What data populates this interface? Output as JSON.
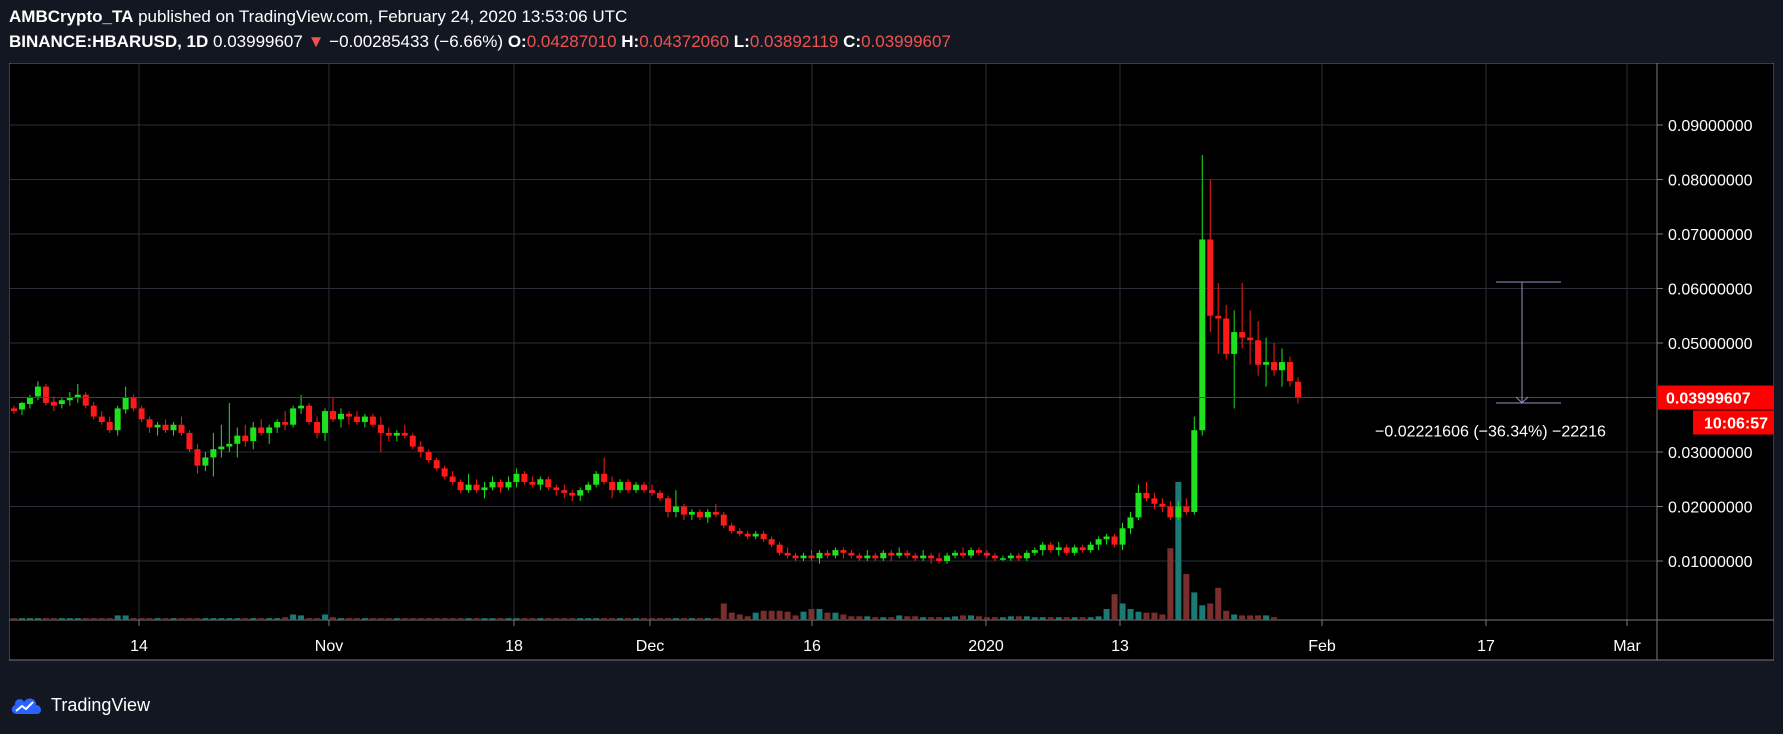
{
  "header": {
    "author": "AMBCrypto_TA",
    "published_text": "published on TradingView.com, February 24, 2020 13:53:06 UTC",
    "symbol": "BINANCE:HBARUSD, 1D",
    "last_price": "0.03999607",
    "change_arrow": "▼",
    "change": "−0.00285433 (−6.66%)",
    "open_label": "O:",
    "open": "0.04287010",
    "high_label": "H:",
    "high": "0.04372060",
    "low_label": "L:",
    "low": "0.03892119",
    "close_label": "C:",
    "close": "0.03999607"
  },
  "footer": {
    "brand": "TradingView"
  },
  "colors": {
    "up": "#1fe21f",
    "down": "#ff1a1a",
    "background": "#000000",
    "price_label": "#ff0000",
    "grid": "#2a2e39",
    "measure": "#9c8ec9"
  },
  "chart_data": {
    "type": "candlestick",
    "y_axis": {
      "ticks": [
        "0.09000000",
        "0.08000000",
        "0.07000000",
        "0.06000000",
        "0.05000000",
        "0.03000000",
        "0.02000000",
        "0.01000000"
      ],
      "range": [
        0.0,
        0.093
      ]
    },
    "x_axis": {
      "ticks": [
        "14",
        "Nov",
        "18",
        "Dec",
        "16",
        "2020",
        "13",
        "Feb",
        "17",
        "Mar"
      ]
    },
    "current_price_label": "0.03999607",
    "current_price": 0.03999607,
    "countdown_label": "10:06:57",
    "measure": {
      "label": "−0.02221606 (−36.34%) −22216",
      "from_price": 0.0612,
      "to_price": 0.039
    },
    "candles": [
      [
        0.038,
        0.0385,
        0.037,
        0.0375
      ],
      [
        0.0378,
        0.0392,
        0.0368,
        0.039
      ],
      [
        0.0388,
        0.0405,
        0.038,
        0.04
      ],
      [
        0.0402,
        0.043,
        0.0395,
        0.042
      ],
      [
        0.042,
        0.0425,
        0.0385,
        0.039
      ],
      [
        0.0392,
        0.0402,
        0.0375,
        0.0385
      ],
      [
        0.0388,
        0.04,
        0.038,
        0.0395
      ],
      [
        0.0395,
        0.041,
        0.0385,
        0.04
      ],
      [
        0.04,
        0.0425,
        0.039,
        0.0405
      ],
      [
        0.0405,
        0.041,
        0.038,
        0.0385
      ],
      [
        0.0385,
        0.0392,
        0.036,
        0.0365
      ],
      [
        0.0365,
        0.0375,
        0.035,
        0.0355
      ],
      [
        0.0355,
        0.0365,
        0.0335,
        0.034
      ],
      [
        0.034,
        0.0385,
        0.033,
        0.038
      ],
      [
        0.0378,
        0.042,
        0.037,
        0.04
      ],
      [
        0.04,
        0.0405,
        0.0375,
        0.038
      ],
      [
        0.038,
        0.0385,
        0.0355,
        0.036
      ],
      [
        0.036,
        0.0365,
        0.0335,
        0.0345
      ],
      [
        0.0345,
        0.0355,
        0.033,
        0.035
      ],
      [
        0.035,
        0.036,
        0.0335,
        0.034
      ],
      [
        0.034,
        0.0355,
        0.033,
        0.035
      ],
      [
        0.035,
        0.0365,
        0.033,
        0.0335
      ],
      [
        0.0335,
        0.034,
        0.03,
        0.0305
      ],
      [
        0.0305,
        0.0315,
        0.026,
        0.0275
      ],
      [
        0.0275,
        0.03,
        0.0265,
        0.029
      ],
      [
        0.029,
        0.0335,
        0.0255,
        0.0305
      ],
      [
        0.0305,
        0.035,
        0.029,
        0.031
      ],
      [
        0.031,
        0.039,
        0.03,
        0.0315
      ],
      [
        0.0315,
        0.0345,
        0.029,
        0.033
      ],
      [
        0.033,
        0.035,
        0.031,
        0.032
      ],
      [
        0.032,
        0.0355,
        0.0305,
        0.0345
      ],
      [
        0.0345,
        0.036,
        0.033,
        0.0335
      ],
      [
        0.0335,
        0.035,
        0.0315,
        0.0345
      ],
      [
        0.0345,
        0.036,
        0.0335,
        0.0355
      ],
      [
        0.0355,
        0.0375,
        0.034,
        0.035
      ],
      [
        0.035,
        0.0385,
        0.0345,
        0.038
      ],
      [
        0.038,
        0.0405,
        0.037,
        0.0385
      ],
      [
        0.0385,
        0.039,
        0.035,
        0.0355
      ],
      [
        0.0355,
        0.0365,
        0.0325,
        0.0335
      ],
      [
        0.0335,
        0.038,
        0.032,
        0.0375
      ],
      [
        0.0375,
        0.04,
        0.0355,
        0.036
      ],
      [
        0.036,
        0.038,
        0.0345,
        0.037
      ],
      [
        0.037,
        0.0375,
        0.035,
        0.0365
      ],
      [
        0.0365,
        0.0375,
        0.035,
        0.0355
      ],
      [
        0.0355,
        0.037,
        0.0345,
        0.0365
      ],
      [
        0.0365,
        0.037,
        0.0345,
        0.035
      ],
      [
        0.035,
        0.0365,
        0.03,
        0.0335
      ],
      [
        0.0335,
        0.0345,
        0.032,
        0.033
      ],
      [
        0.033,
        0.034,
        0.032,
        0.0335
      ],
      [
        0.0335,
        0.035,
        0.0325,
        0.033
      ],
      [
        0.033,
        0.0335,
        0.0305,
        0.031
      ],
      [
        0.031,
        0.032,
        0.029,
        0.03
      ],
      [
        0.03,
        0.0305,
        0.028,
        0.0285
      ],
      [
        0.0285,
        0.029,
        0.0265,
        0.027
      ],
      [
        0.027,
        0.0275,
        0.025,
        0.0255
      ],
      [
        0.0255,
        0.0265,
        0.024,
        0.0245
      ],
      [
        0.0245,
        0.025,
        0.0225,
        0.023
      ],
      [
        0.023,
        0.026,
        0.0225,
        0.024
      ],
      [
        0.024,
        0.025,
        0.0225,
        0.023
      ],
      [
        0.023,
        0.0245,
        0.0215,
        0.0235
      ],
      [
        0.0235,
        0.0255,
        0.023,
        0.0245
      ],
      [
        0.0245,
        0.025,
        0.0225,
        0.0235
      ],
      [
        0.0235,
        0.0255,
        0.023,
        0.0245
      ],
      [
        0.0245,
        0.027,
        0.0235,
        0.026
      ],
      [
        0.026,
        0.0265,
        0.024,
        0.0245
      ],
      [
        0.0245,
        0.0255,
        0.0235,
        0.024
      ],
      [
        0.024,
        0.0255,
        0.023,
        0.025
      ],
      [
        0.025,
        0.0255,
        0.023,
        0.0235
      ],
      [
        0.0235,
        0.024,
        0.022,
        0.023
      ],
      [
        0.023,
        0.024,
        0.0215,
        0.0225
      ],
      [
        0.0225,
        0.023,
        0.021,
        0.022
      ],
      [
        0.022,
        0.0235,
        0.021,
        0.023
      ],
      [
        0.023,
        0.0245,
        0.0225,
        0.024
      ],
      [
        0.024,
        0.0265,
        0.0235,
        0.026
      ],
      [
        0.026,
        0.029,
        0.024,
        0.0245
      ],
      [
        0.0245,
        0.0255,
        0.0215,
        0.023
      ],
      [
        0.023,
        0.025,
        0.0225,
        0.0245
      ],
      [
        0.0245,
        0.025,
        0.0225,
        0.023
      ],
      [
        0.023,
        0.0245,
        0.0225,
        0.024
      ],
      [
        0.024,
        0.0245,
        0.0225,
        0.023
      ],
      [
        0.023,
        0.024,
        0.022,
        0.0225
      ],
      [
        0.0225,
        0.023,
        0.021,
        0.0215
      ],
      [
        0.0215,
        0.022,
        0.018,
        0.019
      ],
      [
        0.019,
        0.023,
        0.018,
        0.02
      ],
      [
        0.02,
        0.0205,
        0.0175,
        0.0185
      ],
      [
        0.0185,
        0.0195,
        0.0175,
        0.019
      ],
      [
        0.019,
        0.0195,
        0.0175,
        0.018
      ],
      [
        0.018,
        0.0195,
        0.017,
        0.019
      ],
      [
        0.019,
        0.0205,
        0.018,
        0.0185
      ],
      [
        0.0185,
        0.019,
        0.016,
        0.0165
      ],
      [
        0.0165,
        0.017,
        0.015,
        0.0155
      ],
      [
        0.0155,
        0.016,
        0.0145,
        0.015
      ],
      [
        0.015,
        0.0155,
        0.014,
        0.0145
      ],
      [
        0.0145,
        0.0155,
        0.014,
        0.015
      ],
      [
        0.015,
        0.0155,
        0.0135,
        0.014
      ],
      [
        0.014,
        0.0145,
        0.0125,
        0.013
      ],
      [
        0.013,
        0.0135,
        0.011,
        0.0115
      ],
      [
        0.0115,
        0.0125,
        0.0105,
        0.011
      ],
      [
        0.011,
        0.0115,
        0.01,
        0.0105
      ],
      [
        0.0105,
        0.0115,
        0.01,
        0.011
      ],
      [
        0.011,
        0.012,
        0.01,
        0.0105
      ],
      [
        0.0105,
        0.012,
        0.0095,
        0.0115
      ],
      [
        0.0115,
        0.012,
        0.0105,
        0.011
      ],
      [
        0.011,
        0.0125,
        0.0105,
        0.012
      ],
      [
        0.012,
        0.0125,
        0.0105,
        0.0115
      ],
      [
        0.0115,
        0.012,
        0.0105,
        0.011
      ],
      [
        0.011,
        0.0115,
        0.01,
        0.0105
      ],
      [
        0.0105,
        0.012,
        0.01,
        0.011
      ],
      [
        0.011,
        0.0115,
        0.01,
        0.0105
      ],
      [
        0.0105,
        0.012,
        0.01,
        0.0115
      ],
      [
        0.0115,
        0.012,
        0.01,
        0.011
      ],
      [
        0.011,
        0.0125,
        0.0105,
        0.0115
      ],
      [
        0.0115,
        0.012,
        0.0105,
        0.011
      ],
      [
        0.011,
        0.0115,
        0.01,
        0.0105
      ],
      [
        0.0105,
        0.012,
        0.01,
        0.011
      ],
      [
        0.011,
        0.0115,
        0.0095,
        0.0105
      ],
      [
        0.0105,
        0.0115,
        0.0095,
        0.01
      ],
      [
        0.01,
        0.0115,
        0.0095,
        0.011
      ],
      [
        0.011,
        0.012,
        0.0105,
        0.0115
      ],
      [
        0.0115,
        0.0125,
        0.0105,
        0.011
      ],
      [
        0.011,
        0.0125,
        0.0105,
        0.012
      ],
      [
        0.012,
        0.0125,
        0.011,
        0.0115
      ],
      [
        0.0115,
        0.012,
        0.0105,
        0.011
      ],
      [
        0.011,
        0.0115,
        0.01,
        0.0105
      ],
      [
        0.0105,
        0.011,
        0.01,
        0.0105
      ],
      [
        0.0105,
        0.0115,
        0.01,
        0.011
      ],
      [
        0.011,
        0.0115,
        0.01,
        0.0105
      ],
      [
        0.0105,
        0.012,
        0.01,
        0.0115
      ],
      [
        0.0115,
        0.0125,
        0.011,
        0.012
      ],
      [
        0.012,
        0.0135,
        0.011,
        0.013
      ],
      [
        0.013,
        0.0135,
        0.0115,
        0.012
      ],
      [
        0.012,
        0.0135,
        0.011,
        0.0125
      ],
      [
        0.0125,
        0.013,
        0.011,
        0.0115
      ],
      [
        0.0115,
        0.013,
        0.011,
        0.0125
      ],
      [
        0.0125,
        0.013,
        0.0115,
        0.012
      ],
      [
        0.012,
        0.0135,
        0.0115,
        0.013
      ],
      [
        0.013,
        0.0145,
        0.012,
        0.014
      ],
      [
        0.014,
        0.015,
        0.013,
        0.0145
      ],
      [
        0.0145,
        0.015,
        0.0125,
        0.013
      ],
      [
        0.013,
        0.017,
        0.012,
        0.016
      ],
      [
        0.016,
        0.019,
        0.015,
        0.018
      ],
      [
        0.018,
        0.024,
        0.0175,
        0.0225
      ],
      [
        0.0225,
        0.0245,
        0.021,
        0.0215
      ],
      [
        0.0215,
        0.0225,
        0.0195,
        0.0205
      ],
      [
        0.0205,
        0.0215,
        0.019,
        0.02
      ],
      [
        0.02,
        0.021,
        0.0175,
        0.018
      ],
      [
        0.018,
        0.021,
        0.0175,
        0.02
      ],
      [
        0.02,
        0.0215,
        0.0185,
        0.019
      ],
      [
        0.019,
        0.0365,
        0.0185,
        0.034
      ],
      [
        0.034,
        0.0845,
        0.033,
        0.069
      ],
      [
        0.069,
        0.08,
        0.052,
        0.055
      ],
      [
        0.055,
        0.061,
        0.048,
        0.0545
      ],
      [
        0.0545,
        0.057,
        0.047,
        0.048
      ],
      [
        0.048,
        0.056,
        0.038,
        0.052
      ],
      [
        0.052,
        0.061,
        0.049,
        0.051
      ],
      [
        0.051,
        0.056,
        0.046,
        0.0505
      ],
      [
        0.0505,
        0.054,
        0.044,
        0.046
      ],
      [
        0.046,
        0.051,
        0.042,
        0.0465
      ],
      [
        0.0465,
        0.05,
        0.044,
        0.045
      ],
      [
        0.045,
        0.049,
        0.042,
        0.0465
      ],
      [
        0.0465,
        0.0475,
        0.042,
        0.043
      ],
      [
        0.0429,
        0.0437,
        0.0389,
        0.04
      ]
    ],
    "volume": [
      0.2,
      0.2,
      0.2,
      0.2,
      0.2,
      0.2,
      0.2,
      0.2,
      0.2,
      0.2,
      0.2,
      0.2,
      0.2,
      0.5,
      0.5,
      0.2,
      0.2,
      0.2,
      0.2,
      0.2,
      0.2,
      0.2,
      0.2,
      0.2,
      0.2,
      0.2,
      0.2,
      0.2,
      0.2,
      0.2,
      0.2,
      0.2,
      0.2,
      0.2,
      0.3,
      0.6,
      0.5,
      0.2,
      0.2,
      0.6,
      0.3,
      0.2,
      0.2,
      0.2,
      0.2,
      0.2,
      0.2,
      0.2,
      0.2,
      0.2,
      0.2,
      0.2,
      0.2,
      0.2,
      0.2,
      0.2,
      0.2,
      0.2,
      0.2,
      0.2,
      0.2,
      0.2,
      0.2,
      0.2,
      0.2,
      0.2,
      0.2,
      0.2,
      0.2,
      0.2,
      0.2,
      0.2,
      0.2,
      0.2,
      0.2,
      0.2,
      0.2,
      0.2,
      0.2,
      0.2,
      0.2,
      0.2,
      0.2,
      0.2,
      0.2,
      0.2,
      0.2,
      0.2,
      0.2,
      1.8,
      0.8,
      0.6,
      0.4,
      0.8,
      1.0,
      1.0,
      1.0,
      0.9,
      0.5,
      0.9,
      1.2,
      1.2,
      0.8,
      0.8,
      0.6,
      0.4,
      0.4,
      0.4,
      0.3,
      0.3,
      0.3,
      0.5,
      0.4,
      0.4,
      0.3,
      0.3,
      0.3,
      0.3,
      0.4,
      0.5,
      0.5,
      0.4,
      0.3,
      0.3,
      0.3,
      0.4,
      0.4,
      0.4,
      0.3,
      0.3,
      0.3,
      0.3,
      0.3,
      0.3,
      0.3,
      0.3,
      0.4,
      1.2,
      2.8,
      1.8,
      1.2,
      0.9,
      0.8,
      0.8,
      0.6,
      7.8,
      15.0,
      5.0,
      3.0,
      1.6,
      1.8,
      3.5,
      1.0,
      0.6,
      0.5,
      0.5,
      0.5,
      0.5,
      0.3
    ]
  }
}
